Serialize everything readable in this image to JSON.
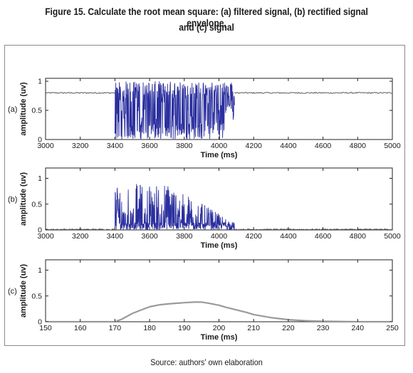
{
  "caption": {
    "line1": "Figure 15. Calculate the root mean square: (a) filtered signal, (b) rectified signal envelope,",
    "line2": "and (c) signal"
  },
  "source": "Source: authors' own elaboration",
  "colors": {
    "signal": "#2b2f9e",
    "rms": "#9a9a9a",
    "baseline": "#5a5a5a",
    "axis": "#222222"
  },
  "chart_data": [
    {
      "panel_label": "(a)",
      "type": "line",
      "xlabel": "Time (ms)",
      "ylabel": "amplitude (uv)",
      "xlim": [
        3000,
        5000
      ],
      "ylim": [
        0,
        1.05
      ],
      "xticks": [
        3000,
        3200,
        3400,
        3600,
        3800,
        4000,
        4200,
        4400,
        4600,
        4800,
        5000
      ],
      "yticks": [
        "0",
        "0.5",
        "1"
      ],
      "yticks_values": [
        0,
        0.5,
        1
      ],
      "baseline_level": 0.8,
      "burst_range": [
        3400,
        4090
      ],
      "burst_amplitude_max": 1.0
    },
    {
      "panel_label": "(b)",
      "type": "line",
      "xlabel": "Time (ms)",
      "ylabel": "amplitude (uv)",
      "xlim": [
        3000,
        5000
      ],
      "ylim": [
        0,
        1.2
      ],
      "xticks": [
        3000,
        3200,
        3400,
        3600,
        3800,
        4000,
        4200,
        4400,
        4600,
        4800,
        5000
      ],
      "yticks": [
        "0",
        "0.5",
        "1"
      ],
      "yticks_values": [
        0,
        0.5,
        1
      ],
      "baseline_level": 0.01,
      "burst_range": [
        3400,
        4090
      ],
      "burst_amplitude_max": 1.0
    },
    {
      "panel_label": "(c)",
      "type": "line",
      "xlabel": "Time (ms)",
      "ylabel": "amplitude (uv)",
      "xlim": [
        150,
        250
      ],
      "ylim": [
        0,
        1.2
      ],
      "xticks": [
        150,
        160,
        170,
        180,
        190,
        200,
        210,
        220,
        230,
        240,
        250
      ],
      "yticks": [
        "0",
        "0.5",
        "1"
      ],
      "yticks_values": [
        0,
        0.5,
        1
      ],
      "x": [
        150,
        160,
        170,
        172,
        175,
        178,
        180,
        183,
        186,
        190,
        193,
        195,
        197,
        200,
        202,
        205,
        208,
        210,
        215,
        220,
        225,
        230,
        240,
        250
      ],
      "y": [
        0.0,
        0.0,
        0.0,
        0.05,
        0.16,
        0.24,
        0.29,
        0.33,
        0.35,
        0.37,
        0.38,
        0.38,
        0.36,
        0.32,
        0.28,
        0.23,
        0.18,
        0.14,
        0.08,
        0.04,
        0.02,
        0.01,
        0.0,
        0.0
      ]
    }
  ]
}
